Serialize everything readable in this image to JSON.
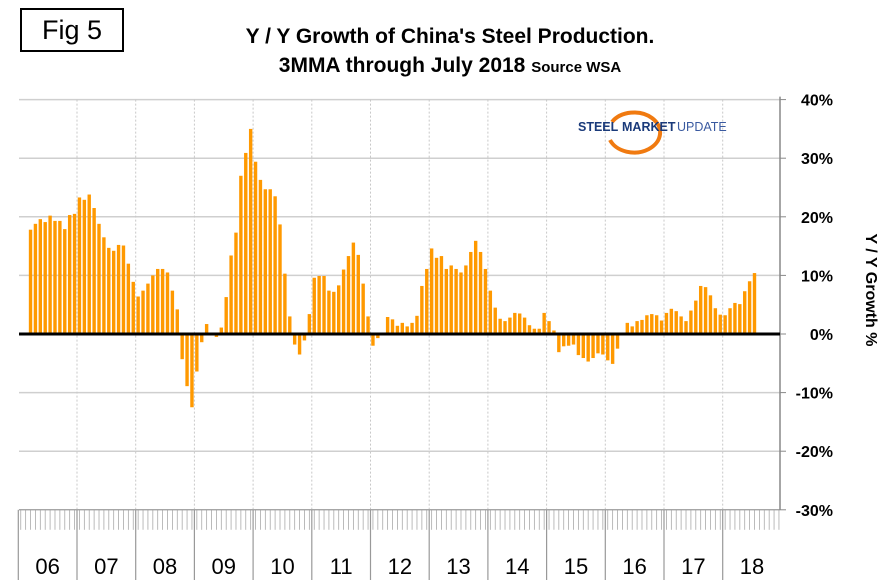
{
  "fig_label": "Fig 5",
  "logo_text": [
    "STEEL",
    "MARKET",
    "UPDATE"
  ],
  "chart_data": {
    "type": "bar",
    "title": "Y / Y Growth of China's Steel Production.",
    "subtitle": "3MMA through July 2018",
    "source_note": "Source WSA",
    "ylabel": "Y / Y Growth %",
    "ylim": [
      -30,
      40
    ],
    "yticks": [
      "40%",
      "30%",
      "20%",
      "10%",
      "0%",
      "-10%",
      "-20%",
      "-30%"
    ],
    "ytick_values": [
      40,
      30,
      20,
      10,
      0,
      -10,
      -20,
      -30
    ],
    "xtick_labels": [
      "06",
      "07",
      "08",
      "09",
      "10",
      "11",
      "12",
      "13",
      "14",
      "15",
      "16",
      "17",
      "18"
    ],
    "grid": true,
    "bar_color": "#FF9900",
    "first_month": "2006-03",
    "last_month": "2018-07",
    "values": [
      17.8,
      18.8,
      19.6,
      19.1,
      20.2,
      19.3,
      19.3,
      17.9,
      20.3,
      20.5,
      23.3,
      22.9,
      23.8,
      21.5,
      18.8,
      16.5,
      14.7,
      14.2,
      15.2,
      15.1,
      12.0,
      8.9,
      6.4,
      7.4,
      8.6,
      10.0,
      11.1,
      11.1,
      10.5,
      7.4,
      4.2,
      -4.3,
      -8.9,
      -12.5,
      -6.4,
      -1.4,
      1.7,
      0,
      -0.5,
      1.1,
      6.3,
      13.4,
      17.3,
      27.0,
      30.9,
      35.0,
      29.4,
      26.3,
      24.7,
      24.7,
      23.5,
      18.7,
      10.3,
      3.0,
      -1.8,
      -3.5,
      -1.1,
      3.4,
      9.6,
      9.9,
      9.9,
      7.4,
      7.2,
      8.3,
      11.0,
      13.3,
      15.6,
      13.5,
      8.6,
      3.0,
      -2.0,
      -0.7,
      0,
      2.9,
      2.5,
      1.4,
      1.9,
      1.3,
      1.9,
      3.1,
      8.2,
      11.1,
      14.6,
      13.0,
      13.3,
      11.1,
      11.7,
      11.1,
      10.5,
      11.7,
      14.0,
      15.9,
      14.0,
      11.1,
      7.4,
      4.5,
      2.6,
      2.2,
      2.8,
      3.6,
      3.5,
      2.8,
      1.5,
      0.9,
      0.9,
      3.6,
      2.2,
      0.6,
      -3.1,
      -2.1,
      -2.0,
      -1.8,
      -3.6,
      -4.1,
      -4.7,
      -4.1,
      -3.3,
      -3.5,
      -4.5,
      -5.1,
      -2.5,
      0,
      1.9,
      1.3,
      2.2,
      2.4,
      3.2,
      3.4,
      3.2,
      2.3,
      3.6,
      4.3,
      3.9,
      3.0,
      2.2,
      4.0,
      5.7,
      8.2,
      8.0,
      6.6,
      4.4,
      3.3,
      3.2,
      4.4,
      5.3,
      5.1,
      7.3,
      9.0,
      10.4
    ]
  }
}
